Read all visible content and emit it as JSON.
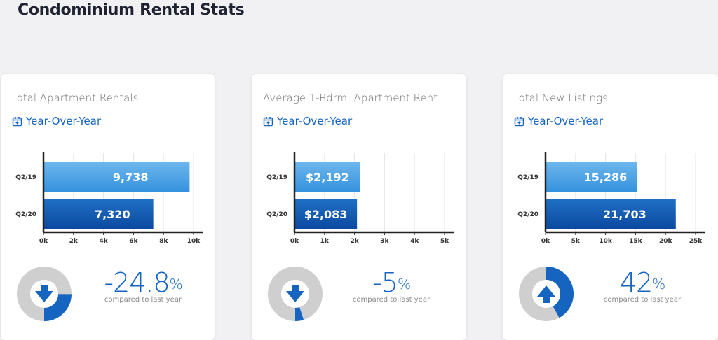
{
  "page": {
    "title": "Condominium Rental Stats"
  },
  "colors": {
    "bar_2019_top": "#6cb6ec",
    "bar_2019_bottom": "#3592de",
    "bar_2020_top": "#1f6fc4",
    "bar_2020_bottom": "#0b4aa0",
    "accent": "#1565c0",
    "donut_track": "#cfcfcf"
  },
  "cards": [
    {
      "title": "Total Apartment Rentals",
      "period_label": "Year-Over-Year",
      "period_icon": "calendar-icon",
      "percent": "-24.8",
      "percent_sign": "%",
      "caption": "compared to last year",
      "direction": "down",
      "direction_icon": "arrow-down-icon",
      "donut_fraction": 0.248,
      "bars": [
        {
          "label": "Q2/19",
          "value": 9738,
          "value_label": "9,738"
        },
        {
          "label": "Q2/20",
          "value": 7320,
          "value_label": "7,320"
        }
      ],
      "axis": {
        "max": 10000,
        "ticks": [
          "0k",
          "2k",
          "4k",
          "6k",
          "8k",
          "10k"
        ]
      }
    },
    {
      "title": "Average 1-Bdrm. Apartment Rent",
      "period_label": "Year-Over-Year",
      "period_icon": "calendar-icon",
      "percent": "-5",
      "percent_sign": "%",
      "caption": "compared to last year",
      "direction": "down",
      "direction_icon": "arrow-down-icon",
      "donut_fraction": 0.05,
      "bars": [
        {
          "label": "Q2/19",
          "value": 2192,
          "value_label": "$2,192"
        },
        {
          "label": "Q2/20",
          "value": 2083,
          "value_label": "$2,083"
        }
      ],
      "axis": {
        "max": 5000,
        "ticks": [
          "0k",
          "1k",
          "2k",
          "3k",
          "4k",
          "5k"
        ]
      }
    },
    {
      "title": "Total New Listings",
      "period_label": "Year-Over-Year",
      "period_icon": "calendar-icon",
      "percent": "42",
      "percent_sign": "%",
      "caption": "compared to last year",
      "direction": "up",
      "direction_icon": "arrow-up-icon",
      "donut_fraction": 0.42,
      "bars": [
        {
          "label": "Q2/19",
          "value": 15286,
          "value_label": "15,286"
        },
        {
          "label": "Q2/20",
          "value": 21703,
          "value_label": "21,703"
        }
      ],
      "axis": {
        "max": 25000,
        "ticks": [
          "0k",
          "5k",
          "10k",
          "15k",
          "20k",
          "25k"
        ]
      }
    }
  ],
  "chart_data": [
    {
      "type": "bar",
      "orientation": "horizontal",
      "title": "Total Apartment Rentals",
      "categories": [
        "Q2/19",
        "Q2/20"
      ],
      "values": [
        9738,
        7320
      ],
      "xlim": [
        0,
        10000
      ],
      "grid": true
    },
    {
      "type": "bar",
      "orientation": "horizontal",
      "title": "Average 1-Bdrm. Apartment Rent",
      "categories": [
        "Q2/19",
        "Q2/20"
      ],
      "values": [
        2192,
        2083
      ],
      "xlim": [
        0,
        5000
      ],
      "grid": true
    },
    {
      "type": "bar",
      "orientation": "horizontal",
      "title": "Total New Listings",
      "categories": [
        "Q2/19",
        "Q2/20"
      ],
      "values": [
        15286,
        21703
      ],
      "xlim": [
        0,
        25000
      ],
      "grid": true
    }
  ]
}
